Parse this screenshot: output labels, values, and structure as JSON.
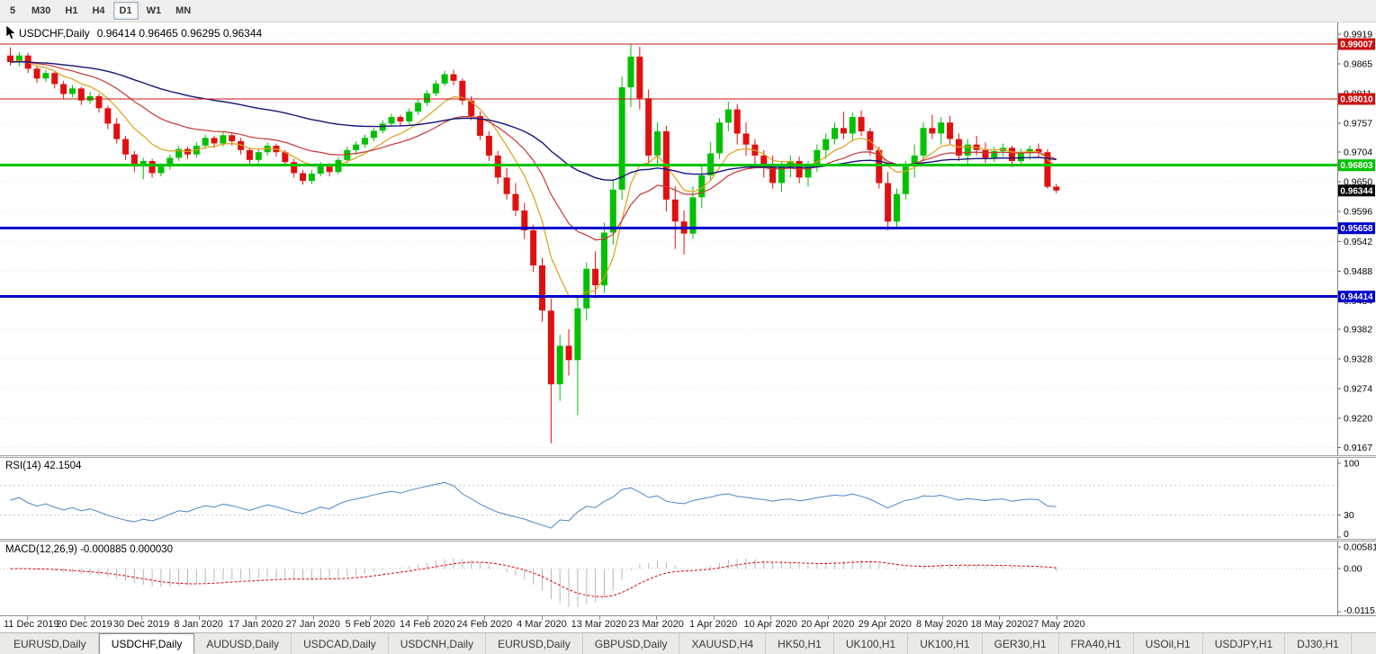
{
  "toolbar": {
    "timeframe_buttons": [
      {
        "label": "5",
        "active": false
      },
      {
        "label": "M30",
        "active": false
      },
      {
        "label": "H1",
        "active": false
      },
      {
        "label": "H4",
        "active": false
      },
      {
        "label": "D1",
        "active": true
      },
      {
        "label": "W1",
        "active": false
      },
      {
        "label": "MN",
        "active": false
      }
    ]
  },
  "chart": {
    "symbol_title": "USDCHF,Daily",
    "ohlc_line": "0.96414 0.96465 0.96295 0.96344",
    "rsi_label": "RSI(14) 42.1504",
    "macd_label": "MACD(12,26,9) -0.000885 0.000030"
  },
  "icons": {
    "chart_cursor": "mouse-cursor-icon"
  },
  "chart_data": {
    "type": "candlestick",
    "symbol": "USDCHF",
    "timeframe": "Daily",
    "current_bar": {
      "open": 0.96414,
      "high": 0.96465,
      "low": 0.96295,
      "close": 0.96344
    },
    "price_axis_ticks": [
      "0.9919",
      "0.9865",
      "0.9811",
      "0.9757",
      "0.9704",
      "0.9650",
      "0.9596",
      "0.9542",
      "0.9488",
      "0.9434",
      "0.9382",
      "0.9328",
      "0.9274",
      "0.9220",
      "0.9167"
    ],
    "price_range": {
      "max": 0.994,
      "min": 0.9153
    },
    "x_dates": [
      "11 Dec 2019",
      "20 Dec 2019",
      "30 Dec 2019",
      "8 Jan 2020",
      "17 Jan 2020",
      "27 Jan 2020",
      "5 Feb 2020",
      "14 Feb 2020",
      "24 Feb 2020",
      "4 Mar 2020",
      "13 Mar 2020",
      "23 Mar 2020",
      "1 Apr 2020",
      "10 Apr 2020",
      "20 Apr 2020",
      "29 Apr 2020",
      "8 May 2020",
      "18 May 2020",
      "27 May 2020"
    ],
    "levels": [
      {
        "price": 0.99007,
        "label": "0.99007",
        "color": "#cc1111",
        "thickness": 1
      },
      {
        "price": 0.9801,
        "label": "0.98010",
        "color": "#cc1111",
        "thickness": 1
      },
      {
        "price": 0.96803,
        "label": "0.96803",
        "color": "#00c400",
        "thickness": 3
      },
      {
        "price": 0.95658,
        "label": "0.95658",
        "color": "#0000cc",
        "thickness": 3
      },
      {
        "price": 0.94414,
        "label": "0.94414",
        "color": "#0000cc",
        "thickness": 3
      }
    ],
    "current_price_tag": {
      "price": 0.96344,
      "label": "0.96344",
      "color": "#000000"
    },
    "moving_averages": [
      {
        "name": "ma-fast",
        "period": 8,
        "color": "#dd9f18",
        "width": 1.2
      },
      {
        "name": "ma-medium",
        "period": 20,
        "color": "#c93535",
        "width": 1.2
      },
      {
        "name": "ma-slow",
        "period": 55,
        "color": "#15157a",
        "width": 1.4
      }
    ],
    "rsi": {
      "period": 14,
      "value": 42.1504,
      "color": "#4a86c8",
      "levels": [
        70,
        30
      ],
      "axis_labels": [
        {
          "v": 100,
          "t": "100"
        },
        {
          "v": 30,
          "t": "30"
        },
        {
          "v": 0,
          "t": "0"
        }
      ]
    },
    "macd": {
      "fast": 12,
      "slow": 26,
      "signal": 9,
      "value": -0.000885,
      "signal_value": 3e-05,
      "hist_color": "#b8b8b8",
      "signal_color": "#dd0000",
      "range": {
        "max": 0.005818,
        "min": -0.01151
      },
      "axis_labels": [
        {
          "v": 0.005818,
          "t": "0.005818"
        },
        {
          "v": 0,
          "t": "0.00"
        },
        {
          "v": -0.01151,
          "t": "-0.01151"
        }
      ]
    },
    "colors": {
      "up": "#00c000",
      "down": "#e01010",
      "grid": "#e7e7e7",
      "axis_line": "#808080"
    },
    "candles_ohlc": [
      [
        0.988,
        0.9895,
        0.9862,
        0.9868
      ],
      [
        0.9868,
        0.9886,
        0.986,
        0.988
      ],
      [
        0.988,
        0.9885,
        0.9848,
        0.9856
      ],
      [
        0.9856,
        0.9862,
        0.983,
        0.9838
      ],
      [
        0.9838,
        0.9854,
        0.9832,
        0.9848
      ],
      [
        0.9848,
        0.9851,
        0.982,
        0.9828
      ],
      [
        0.9828,
        0.9834,
        0.9802,
        0.981
      ],
      [
        0.981,
        0.9826,
        0.9804,
        0.982
      ],
      [
        0.982,
        0.9823,
        0.979,
        0.9798
      ],
      [
        0.9798,
        0.9814,
        0.9792,
        0.9806
      ],
      [
        0.9806,
        0.981,
        0.9776,
        0.9784
      ],
      [
        0.9784,
        0.9789,
        0.9746,
        0.9756
      ],
      [
        0.9756,
        0.9766,
        0.972,
        0.9728
      ],
      [
        0.9728,
        0.9734,
        0.969,
        0.97
      ],
      [
        0.97,
        0.9706,
        0.9668,
        0.9678
      ],
      [
        0.9678,
        0.9694,
        0.9655,
        0.9688
      ],
      [
        0.9688,
        0.9692,
        0.9658,
        0.9666
      ],
      [
        0.9666,
        0.9684,
        0.966,
        0.9678
      ],
      [
        0.9678,
        0.97,
        0.9672,
        0.9694
      ],
      [
        0.9694,
        0.9716,
        0.9688,
        0.971
      ],
      [
        0.971,
        0.9714,
        0.9692,
        0.97
      ],
      [
        0.97,
        0.9722,
        0.9694,
        0.9716
      ],
      [
        0.9716,
        0.9736,
        0.971,
        0.973
      ],
      [
        0.973,
        0.9734,
        0.9712,
        0.972
      ],
      [
        0.972,
        0.974,
        0.9714,
        0.9735
      ],
      [
        0.9735,
        0.9739,
        0.9716,
        0.9724
      ],
      [
        0.9724,
        0.973,
        0.97,
        0.9708
      ],
      [
        0.9708,
        0.9712,
        0.9682,
        0.969
      ],
      [
        0.969,
        0.971,
        0.9684,
        0.9704
      ],
      [
        0.9704,
        0.9722,
        0.9698,
        0.9716
      ],
      [
        0.9716,
        0.972,
        0.9696,
        0.9704
      ],
      [
        0.9704,
        0.9708,
        0.9678,
        0.9686
      ],
      [
        0.9686,
        0.9692,
        0.9658,
        0.9666
      ],
      [
        0.9666,
        0.9672,
        0.9645,
        0.9652
      ],
      [
        0.9652,
        0.9672,
        0.9646,
        0.9665
      ],
      [
        0.9665,
        0.9686,
        0.966,
        0.968
      ],
      [
        0.968,
        0.9684,
        0.966,
        0.9668
      ],
      [
        0.9668,
        0.9695,
        0.9664,
        0.969
      ],
      [
        0.969,
        0.9714,
        0.9684,
        0.9708
      ],
      [
        0.9708,
        0.9724,
        0.97,
        0.9718
      ],
      [
        0.9718,
        0.9736,
        0.9712,
        0.973
      ],
      [
        0.973,
        0.9748,
        0.9724,
        0.9743
      ],
      [
        0.9743,
        0.9762,
        0.9738,
        0.9756
      ],
      [
        0.9756,
        0.9774,
        0.975,
        0.9768
      ],
      [
        0.9768,
        0.9772,
        0.9752,
        0.976
      ],
      [
        0.976,
        0.9784,
        0.9754,
        0.9778
      ],
      [
        0.9778,
        0.98,
        0.9772,
        0.9794
      ],
      [
        0.9794,
        0.9817,
        0.9788,
        0.9811
      ],
      [
        0.9811,
        0.9835,
        0.9806,
        0.9829
      ],
      [
        0.9829,
        0.9852,
        0.9824,
        0.9846
      ],
      [
        0.9846,
        0.9854,
        0.9826,
        0.9834
      ],
      [
        0.9834,
        0.9838,
        0.979,
        0.9798
      ],
      [
        0.9798,
        0.9806,
        0.9762,
        0.977
      ],
      [
        0.977,
        0.9778,
        0.9726,
        0.9734
      ],
      [
        0.9734,
        0.9742,
        0.9688,
        0.9698
      ],
      [
        0.9698,
        0.9706,
        0.9646,
        0.9658
      ],
      [
        0.9658,
        0.9676,
        0.9618,
        0.9628
      ],
      [
        0.9628,
        0.9648,
        0.9588,
        0.9598
      ],
      [
        0.9598,
        0.9612,
        0.9546,
        0.9562
      ],
      [
        0.9562,
        0.9572,
        0.9486,
        0.9498
      ],
      [
        0.9498,
        0.9512,
        0.9396,
        0.9416
      ],
      [
        0.9416,
        0.9438,
        0.9175,
        0.9282
      ],
      [
        0.9282,
        0.9372,
        0.9252,
        0.9352
      ],
      [
        0.9352,
        0.9382,
        0.9298,
        0.9326
      ],
      [
        0.9326,
        0.9442,
        0.9226,
        0.942
      ],
      [
        0.942,
        0.9504,
        0.9398,
        0.9492
      ],
      [
        0.9492,
        0.9524,
        0.9438,
        0.9462
      ],
      [
        0.9462,
        0.9576,
        0.9448,
        0.9558
      ],
      [
        0.9558,
        0.9652,
        0.9536,
        0.9636
      ],
      [
        0.9636,
        0.9842,
        0.9618,
        0.9822
      ],
      [
        0.9822,
        0.9901,
        0.9786,
        0.9878
      ],
      [
        0.9878,
        0.9896,
        0.9782,
        0.9802
      ],
      [
        0.9802,
        0.9818,
        0.9678,
        0.9698
      ],
      [
        0.9698,
        0.9758,
        0.9678,
        0.9742
      ],
      [
        0.9742,
        0.9752,
        0.9596,
        0.9618
      ],
      [
        0.9618,
        0.9642,
        0.9528,
        0.9578
      ],
      [
        0.9578,
        0.9598,
        0.9518,
        0.9556
      ],
      [
        0.9556,
        0.9642,
        0.9546,
        0.9622
      ],
      [
        0.9622,
        0.9682,
        0.9602,
        0.9662
      ],
      [
        0.9662,
        0.9722,
        0.9652,
        0.9702
      ],
      [
        0.9702,
        0.9766,
        0.9692,
        0.9758
      ],
      [
        0.9758,
        0.9796,
        0.9742,
        0.9782
      ],
      [
        0.9782,
        0.9792,
        0.9718,
        0.9738
      ],
      [
        0.9738,
        0.9758,
        0.9698,
        0.9718
      ],
      [
        0.9718,
        0.9728,
        0.9678,
        0.9698
      ],
      [
        0.9698,
        0.9708,
        0.9658,
        0.9678
      ],
      [
        0.9678,
        0.9698,
        0.9638,
        0.9648
      ],
      [
        0.9648,
        0.9688,
        0.9632,
        0.9678
      ],
      [
        0.9678,
        0.9698,
        0.9658,
        0.9688
      ],
      [
        0.9688,
        0.9696,
        0.9648,
        0.9658
      ],
      [
        0.9658,
        0.9688,
        0.9642,
        0.9678
      ],
      [
        0.9678,
        0.9718,
        0.9668,
        0.9708
      ],
      [
        0.9708,
        0.9738,
        0.9692,
        0.9728
      ],
      [
        0.9728,
        0.9758,
        0.9718,
        0.9748
      ],
      [
        0.9748,
        0.9778,
        0.9728,
        0.9738
      ],
      [
        0.9738,
        0.9776,
        0.9724,
        0.9768
      ],
      [
        0.9768,
        0.978,
        0.9734,
        0.9742
      ],
      [
        0.9742,
        0.9748,
        0.9698,
        0.9708
      ],
      [
        0.9708,
        0.9714,
        0.9638,
        0.9648
      ],
      [
        0.9648,
        0.9668,
        0.9562,
        0.9578
      ],
      [
        0.9578,
        0.9638,
        0.9568,
        0.9628
      ],
      [
        0.9628,
        0.9688,
        0.9618,
        0.9678
      ],
      [
        0.9678,
        0.9718,
        0.9658,
        0.9698
      ],
      [
        0.9698,
        0.9758,
        0.9688,
        0.9748
      ],
      [
        0.9748,
        0.9772,
        0.9728,
        0.9738
      ],
      [
        0.9738,
        0.9768,
        0.9718,
        0.9758
      ],
      [
        0.9758,
        0.977,
        0.9718,
        0.9728
      ],
      [
        0.9728,
        0.9738,
        0.9688,
        0.9698
      ],
      [
        0.9698,
        0.9728,
        0.9678,
        0.9718
      ],
      [
        0.9718,
        0.9734,
        0.9698,
        0.9708
      ],
      [
        0.9708,
        0.9722,
        0.9684,
        0.9694
      ],
      [
        0.9694,
        0.9714,
        0.9686,
        0.9706
      ],
      [
        0.9706,
        0.972,
        0.9696,
        0.9712
      ],
      [
        0.9712,
        0.9716,
        0.9678,
        0.9688
      ],
      [
        0.9688,
        0.971,
        0.968,
        0.9702
      ],
      [
        0.9702,
        0.9716,
        0.969,
        0.971
      ],
      [
        0.971,
        0.972,
        0.9696,
        0.9704
      ],
      [
        0.9704,
        0.971,
        0.9638,
        0.9641
      ],
      [
        0.96414,
        0.96465,
        0.96295,
        0.96344
      ]
    ]
  },
  "bottom_tabs": {
    "active_index": 1,
    "tabs": [
      "EURUSD,Daily",
      "USDCHF,Daily",
      "AUDUSD,Daily",
      "USDCAD,Daily",
      "USDCNH,Daily",
      "EURUSD,Daily",
      "GBPUSD,Daily",
      "XAUUSD,H4",
      "HK50,H1",
      "UK100,H1",
      "UK100,H1",
      "GER30,H1",
      "FRA40,H1",
      "USOil,H1",
      "USDJPY,H1",
      "DJ30,H1"
    ]
  }
}
